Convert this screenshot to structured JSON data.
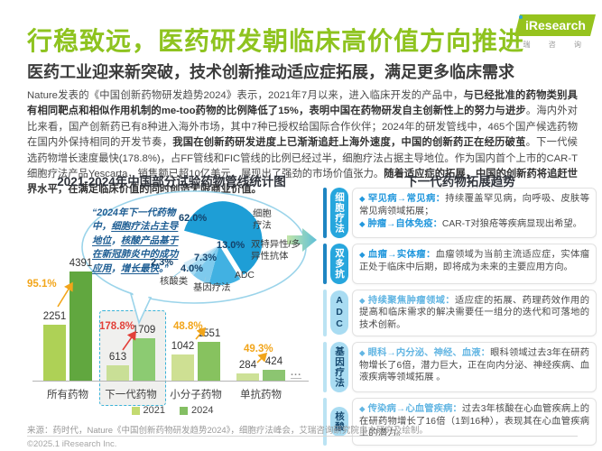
{
  "header": {
    "title": "行稳致远，医药研发朝临床高价值方向推进",
    "subtitle": "医药工业迎来新突破，技术创新推动适应症拓展，满足更多临床需求",
    "logo": {
      "brand": "iResearch",
      "caption": "瑞 咨 询"
    }
  },
  "intro": {
    "segments": [
      {
        "text": "Nature发表的《中国创新药物研发趋势2024》表示，2021年7月以来，进入临床开发的产品中，",
        "bold": false
      },
      {
        "text": "与已经批准的药物类别具有相同靶点和相似作用机制的me-too药物的比例降低了15%，表明中国在药物研发自主创新性上的努力与进步",
        "bold": true
      },
      {
        "text": "。海内外对比来看，国产创新药已有8种进入海外市场，其中7种已授权给国际合作伙伴；2024年的研发管线中，465个国产候选药物在国内外保持相同的开发节奏，",
        "bold": false
      },
      {
        "text": "我国在创新药研发进度上已渐渐追赶上海外速度，中国的创新药正在经历破茧",
        "bold": true
      },
      {
        "text": "。下一代候选药物增长速度最快(178.8%)，占FF管线和FIC管线的比例已经过半，细胞疗法占据主导地位。作为国内首个上市的CAR-T细胞疗法产品Yescarta，销售额已超10亿美元，展现出了强劲的市场价值张力。",
        "bold": false
      },
      {
        "text": "随着适应症的拓展，中国的创新药将追赶世界水平，在满足临床价值的同时创造无限商业价值。",
        "bold": true
      }
    ]
  },
  "chart_data": [
    {
      "type": "bar",
      "title": "2021-2024年中国部分试验药物管线统计图",
      "categories": [
        "所有药物",
        "下一代药物",
        "小分子药物",
        "单抗药物"
      ],
      "series": [
        {
          "name": "2021",
          "values": [
            2251,
            613,
            1042,
            284
          ]
        },
        {
          "name": "2024",
          "values": [
            4391,
            1709,
            1551,
            424
          ]
        }
      ],
      "growth_labels": [
        "95.1%",
        "178.8%",
        "48.8%",
        "49.3%"
      ],
      "highlighted_category": "下一代药物",
      "truncation_indicator": "...",
      "legend": [
        "2021",
        "2024"
      ],
      "legend_position": "bottom",
      "ylim": [
        0,
        4500
      ]
    },
    {
      "type": "pie",
      "labels": [
        "细胞疗法",
        "双特异性/多异性抗体",
        "ADC",
        "基因疗法",
        "核酸类"
      ],
      "values": [
        62.0,
        13.0,
        7.3,
        4.0,
        2.3
      ],
      "value_labels": [
        "62.0%",
        "13.0%",
        "7.3%",
        "4.0%",
        "2.3%"
      ],
      "annotation_segments": [
        {
          "text": "“2024年下一代药物中，",
          "u": false
        },
        {
          "text": "细胞疗法占主导地位",
          "u": true
        },
        {
          "text": "，",
          "u": false
        },
        {
          "text": "核酸产品基于在新冠肺炎中的成功应用",
          "u": true
        },
        {
          "text": "，",
          "u": false
        },
        {
          "text": "增长最快",
          "u": true
        },
        {
          "text": "。”",
          "u": false
        }
      ]
    }
  ],
  "right_panel": {
    "title": "下一代药物拓展趋势",
    "sections": [
      {
        "tab": "细胞疗法",
        "theme": "dark",
        "bullets": [
          {
            "lead": "罕见病→常见病：",
            "text": "持续覆盖罕见病，向呼吸、皮肤等常见病领域拓展；"
          },
          {
            "lead": "肿瘤→自体免疫：",
            "text": "CAR-T对狼疮等疾病显现出希望。"
          }
        ]
      },
      {
        "tab": "双多抗",
        "theme": "dark",
        "bullets": [
          {
            "lead": "血瘤→实体瘤：",
            "text": "血瘤领域为当前主流适应症，实体瘤正处于临床中后期，即将成为未来的主要应用方向。"
          }
        ]
      },
      {
        "tab": "ADC",
        "theme": "light",
        "bullets": [
          {
            "lead": "持续聚焦肿瘤领域：",
            "text": "适应症的拓展、药理药效作用的提高和临床需求的解决需要任一组分的迭代和可落地的技术创新。"
          }
        ]
      },
      {
        "tab": "基因疗法",
        "theme": "light",
        "bullets": [
          {
            "lead": "眼科→内分泌、神经、血液：",
            "text": "眼科领域过去3年在研药物增长了6倍，潜力巨大，正在向内分泌、神经疾病、血液疾病等领域拓展 。"
          }
        ]
      },
      {
        "tab": "核酸",
        "theme": "light",
        "bullets": [
          {
            "lead": "传染病→心血管疾病：",
            "text": "过去3年核酸在心血管疾病上的在研药物增长了16倍（1到16种），表现其在心血管疾病上的潜力。"
          }
        ]
      }
    ]
  },
  "footer": {
    "source": "来源：药时代，Nature《中国创新药物研发趋势2024》，细胞疗法峰会，艾瑞咨询研究院自主研究及绘制。",
    "copyright": "©2025.1 iResearch Inc."
  },
  "colors": {
    "brand_green": "#96c31e",
    "bars_2021": [
      "#aed156",
      "#c9df96",
      "#cee093",
      "#cde197"
    ],
    "bars_2024": [
      "#61a73f",
      "#8ccb72",
      "#87c25f",
      "#8cc571"
    ],
    "legend_2021": "#c3da70",
    "legend_2024": "#84bf63",
    "growth_normal": "#f2a51a",
    "growth_highlight": "#e23f38",
    "highlight_border": "#3ab3d8",
    "pie_palette": [
      "#1e9ed6",
      "#41b1e2",
      "#7ecaed",
      "#a6daf2",
      "#cfeaf8"
    ],
    "bubble_border": "#9bd4ea",
    "quote_blue": "#1c5c92",
    "tab_dark": "#27a6dd",
    "tab_light": "#a9dcf2",
    "accent_dark": "#1e85c2",
    "accent_light": "#bbe3f3",
    "lead_dark": "#2398dd",
    "lead_light": "#63b6e3"
  }
}
